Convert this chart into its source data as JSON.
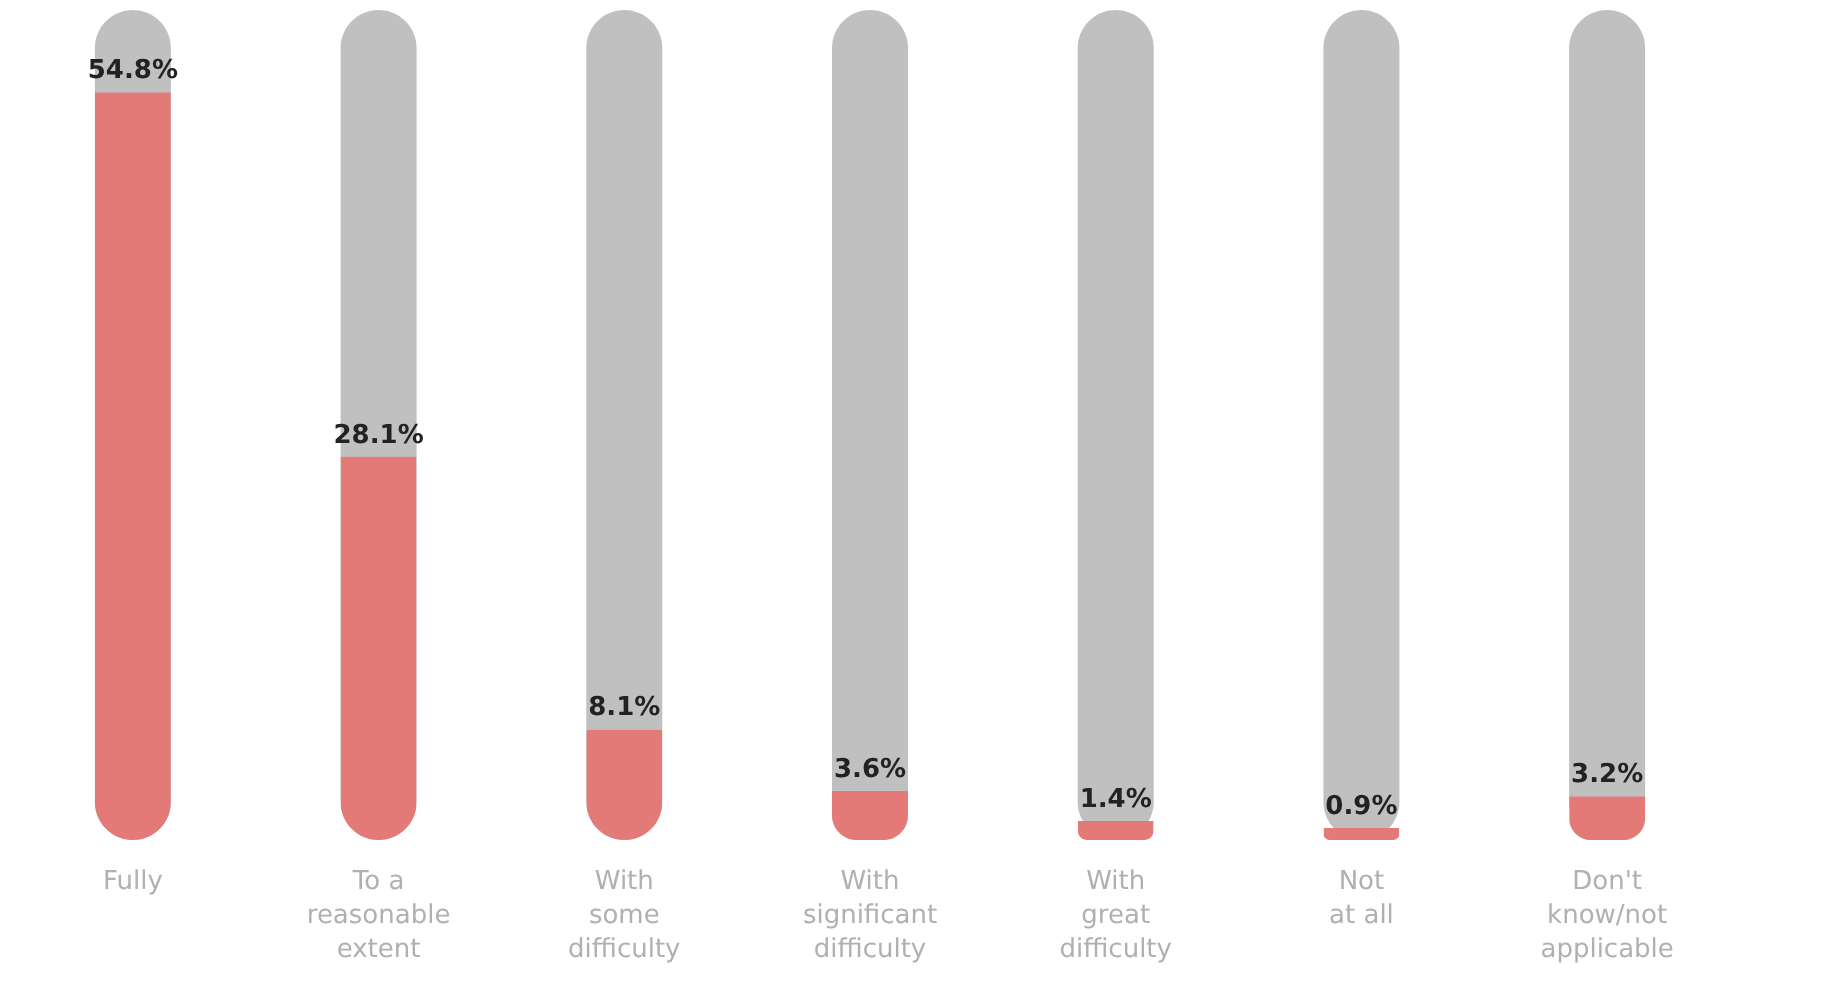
{
  "chart_data": {
    "type": "bar",
    "categories": [
      "Fully",
      "To a\nreasonable\nextent",
      "With\nsome\ndifficulty",
      "With\nsignificant\ndifficulty",
      "With\ngreat\ndifficulty",
      "Not\nat all",
      "Don't\nknow/not\napplicable"
    ],
    "values": [
      54.8,
      28.1,
      8.1,
      3.6,
      1.4,
      0.9,
      3.2
    ],
    "value_labels": [
      "54.8%",
      "28.1%",
      "8.1%",
      "3.6%",
      "1.4%",
      "0.9%",
      "3.2%"
    ],
    "color": "#e47a78",
    "tick_labels": "x"
  }
}
